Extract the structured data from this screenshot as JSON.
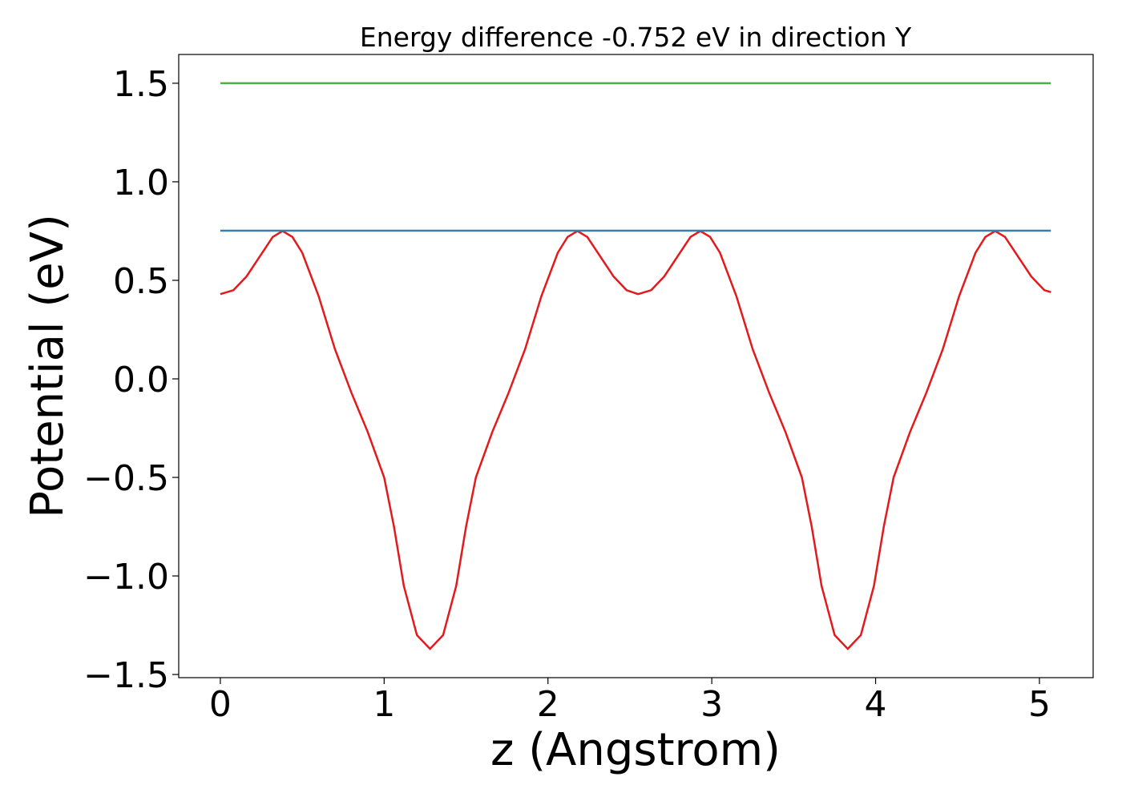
{
  "chart_data": {
    "type": "line",
    "title": "Energy difference -0.752 eV in direction Y",
    "xlabel": "z (Angstrom)",
    "ylabel": "Potential (eV)",
    "xlim": [
      -0.254,
      5.328
    ],
    "ylim": [
      -1.516,
      1.646
    ],
    "xticks": [
      0,
      1,
      2,
      3,
      4,
      5
    ],
    "yticks": [
      {
        "value": -1.5,
        "label": "−1.5"
      },
      {
        "value": -1.0,
        "label": "−1.0"
      },
      {
        "value": -0.5,
        "label": "−0.5"
      },
      {
        "value": 0,
        "label": "0.0"
      },
      0.5,
      {
        "value": 1.0,
        "label": "1.0"
      },
      1.5
    ],
    "series": [
      {
        "color": "#e31a1c",
        "x": [
          0,
          0.08,
          0.16,
          0.24,
          0.32,
          0.38,
          0.44,
          0.5,
          0.6,
          0.7,
          0.8,
          0.9,
          1.0,
          1.06,
          1.12,
          1.2,
          1.28,
          1.36,
          1.44,
          1.5,
          1.56,
          1.66,
          1.76,
          1.86,
          1.96,
          2.06,
          2.12,
          2.18,
          2.24,
          2.32,
          2.4,
          2.48,
          2.55,
          2.63,
          2.71,
          2.79,
          2.87,
          2.93,
          2.99,
          3.05,
          3.15,
          3.25,
          3.35,
          3.45,
          3.55,
          3.61,
          3.67,
          3.75,
          3.83,
          3.91,
          3.99,
          4.05,
          4.11,
          4.21,
          4.31,
          4.41,
          4.51,
          4.61,
          4.67,
          4.73,
          4.79,
          4.87,
          4.95,
          5.03,
          5.07
        ],
        "values": [
          0.43,
          0.45,
          0.52,
          0.62,
          0.72,
          0.75,
          0.72,
          0.64,
          0.42,
          0.15,
          -0.07,
          -0.27,
          -0.5,
          -0.75,
          -1.05,
          -1.3,
          -1.37,
          -1.3,
          -1.05,
          -0.75,
          -0.5,
          -0.27,
          -0.07,
          0.15,
          0.42,
          0.64,
          0.72,
          0.75,
          0.72,
          0.62,
          0.52,
          0.45,
          0.43,
          0.45,
          0.52,
          0.62,
          0.72,
          0.75,
          0.72,
          0.64,
          0.42,
          0.15,
          -0.07,
          -0.27,
          -0.5,
          -0.75,
          -1.05,
          -1.3,
          -1.37,
          -1.3,
          -1.05,
          -0.75,
          -0.5,
          -0.27,
          -0.07,
          0.15,
          0.42,
          0.64,
          0.72,
          0.75,
          0.72,
          0.62,
          0.52,
          0.45,
          0.44
        ]
      },
      {
        "color": "#3b7ca8",
        "x": [
          0,
          5.07
        ],
        "values": [
          0.752,
          0.752
        ]
      },
      {
        "color": "#4daf4a",
        "x": [
          0,
          5.07
        ],
        "values": [
          1.5,
          1.5
        ]
      }
    ]
  }
}
